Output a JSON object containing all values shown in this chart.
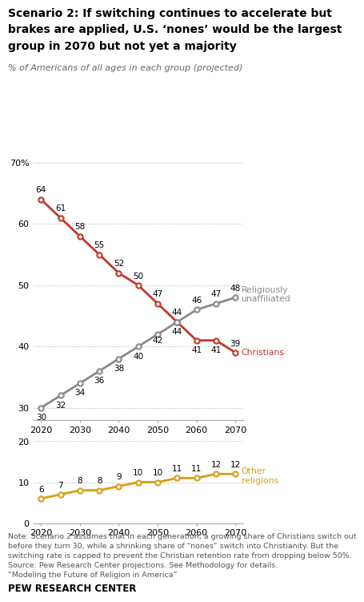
{
  "title_line1": "Scenario 2: If switching continues to accelerate but",
  "title_line2": "brakes are applied, U.S. ‘nones’ would be the largest",
  "title_line3": "group in 2070 but not yet a majority",
  "subtitle": "% of Americans of all ages in each group (projected)",
  "years": [
    2020,
    2025,
    2030,
    2035,
    2040,
    2045,
    2050,
    2055,
    2060,
    2065,
    2070
  ],
  "xtick_years": [
    2020,
    2030,
    2040,
    2050,
    2060,
    2070
  ],
  "christians": [
    64,
    61,
    58,
    55,
    52,
    50,
    47,
    44,
    41,
    41,
    39
  ],
  "unaffiliated": [
    30,
    32,
    34,
    36,
    38,
    40,
    42,
    44,
    46,
    47,
    48
  ],
  "other_religions": [
    6,
    7,
    8,
    8,
    9,
    10,
    10,
    11,
    11,
    12,
    12
  ],
  "christians_color": "#c0392b",
  "unaffiliated_color": "#8a8a8a",
  "other_religions_color": "#d4a017",
  "note_text": "Note: Scenario 2 assumes that in each generation, a growing share of Christians switch out\nbefore they turn 30, while a shrinking share of “nones” switch into Christianity. But the\nswitching rate is capped to prevent the Christian retention rate from dropping below 50%.\nSource: Pew Research Center projections. See Methodology for details.\n“Modeling the Future of Religion in America”",
  "footer": "PEW RESEARCH CENTER",
  "christians_label_offsets": [
    6,
    6,
    6,
    6,
    6,
    6,
    6,
    6,
    -11,
    -11,
    6
  ],
  "unaffiliated_label_offsets": [
    -11,
    -11,
    -11,
    -11,
    -11,
    -11,
    -8,
    -11,
    6,
    6,
    6
  ]
}
